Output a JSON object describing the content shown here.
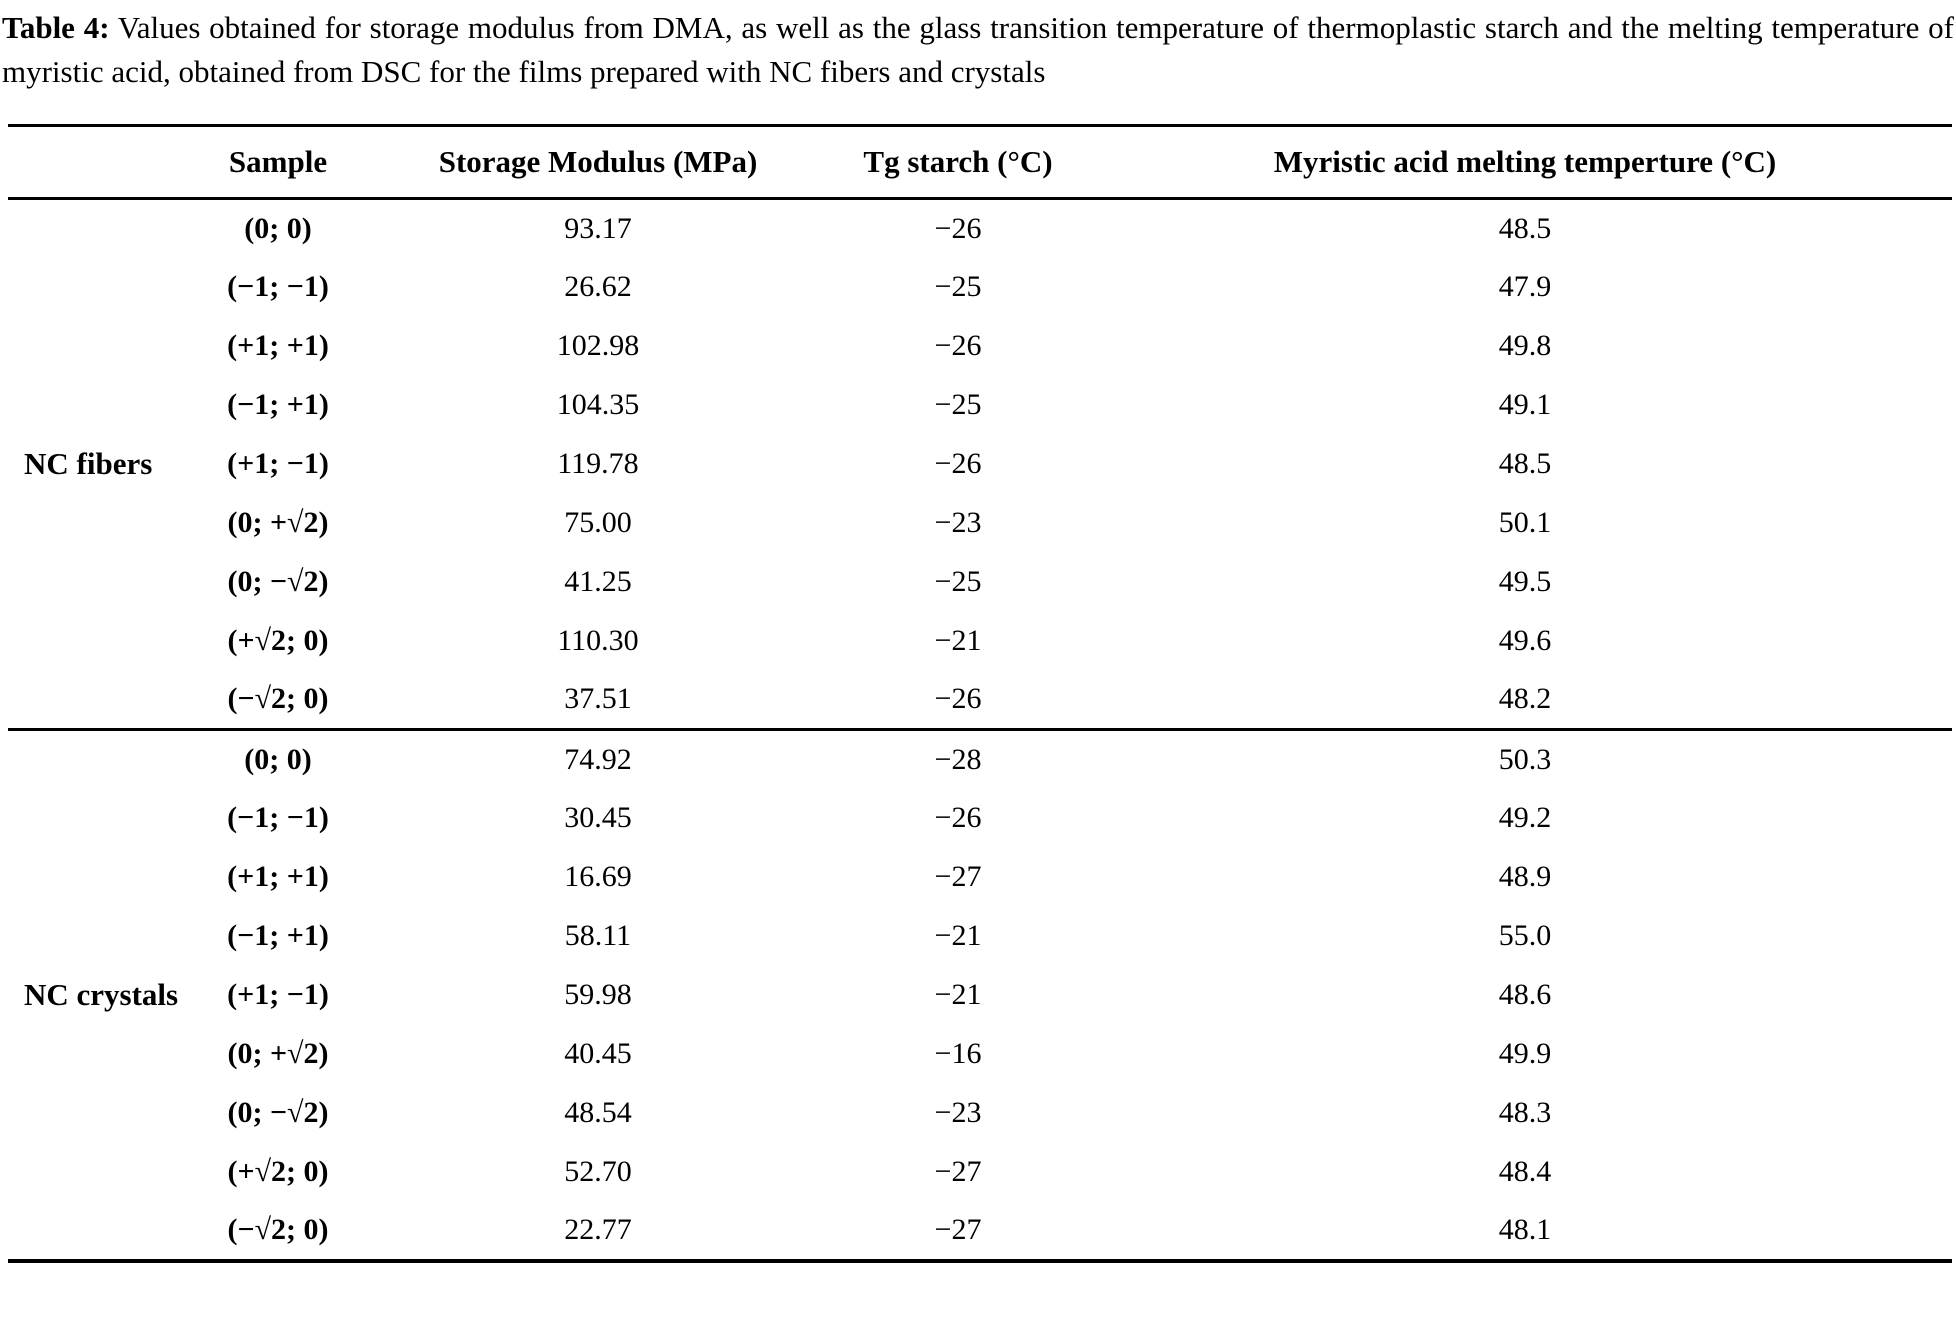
{
  "caption": {
    "label": "Table 4:",
    "text": "Values obtained for storage modulus from DMA, as well as the glass transition temperature of thermoplastic starch and the melting temperature of myristic acid, obtained from DSC for the films prepared with NC fibers and crystals"
  },
  "table": {
    "columns": [
      "Sample",
      "Storage Modulus (MPa)",
      "Tg starch (°C)",
      "Myristic acid melting temperture (°C)"
    ],
    "groups": [
      {
        "label": "NC fibers",
        "rows": [
          {
            "sample": "(0; 0)",
            "storage_modulus": "93.17",
            "tg_starch": "−26",
            "myristic_melting": "48.5"
          },
          {
            "sample": "(−1; −1)",
            "storage_modulus": "26.62",
            "tg_starch": "−25",
            "myristic_melting": "47.9"
          },
          {
            "sample": "(+1; +1)",
            "storage_modulus": "102.98",
            "tg_starch": "−26",
            "myristic_melting": "49.8"
          },
          {
            "sample": "(−1; +1)",
            "storage_modulus": "104.35",
            "tg_starch": "−25",
            "myristic_melting": "49.1"
          },
          {
            "sample": "(+1; −1)",
            "storage_modulus": "119.78",
            "tg_starch": "−26",
            "myristic_melting": "48.5"
          },
          {
            "sample": "(0; +√2)",
            "storage_modulus": "75.00",
            "tg_starch": "−23",
            "myristic_melting": "50.1"
          },
          {
            "sample": "(0; −√2)",
            "storage_modulus": "41.25",
            "tg_starch": "−25",
            "myristic_melting": "49.5"
          },
          {
            "sample": "(+√2; 0)",
            "storage_modulus": "110.30",
            "tg_starch": "−21",
            "myristic_melting": "49.6"
          },
          {
            "sample": "(−√2; 0)",
            "storage_modulus": "37.51",
            "tg_starch": "−26",
            "myristic_melting": "48.2"
          }
        ]
      },
      {
        "label": "NC crystals",
        "rows": [
          {
            "sample": "(0; 0)",
            "storage_modulus": "74.92",
            "tg_starch": "−28",
            "myristic_melting": "50.3"
          },
          {
            "sample": "(−1; −1)",
            "storage_modulus": "30.45",
            "tg_starch": "−26",
            "myristic_melting": "49.2"
          },
          {
            "sample": "(+1; +1)",
            "storage_modulus": "16.69",
            "tg_starch": "−27",
            "myristic_melting": "48.9"
          },
          {
            "sample": "(−1; +1)",
            "storage_modulus": "58.11",
            "tg_starch": "−21",
            "myristic_melting": "55.0"
          },
          {
            "sample": "(+1; −1)",
            "storage_modulus": "59.98",
            "tg_starch": "−21",
            "myristic_melting": "48.6"
          },
          {
            "sample": "(0; +√2)",
            "storage_modulus": "40.45",
            "tg_starch": "−16",
            "myristic_melting": "49.9"
          },
          {
            "sample": "(0; −√2)",
            "storage_modulus": "48.54",
            "tg_starch": "−23",
            "myristic_melting": "48.3"
          },
          {
            "sample": "(+√2; 0)",
            "storage_modulus": "52.70",
            "tg_starch": "−27",
            "myristic_melting": "48.4"
          },
          {
            "sample": "(−√2; 0)",
            "storage_modulus": "22.77",
            "tg_starch": "−27",
            "myristic_melting": "48.1"
          }
        ]
      }
    ]
  }
}
